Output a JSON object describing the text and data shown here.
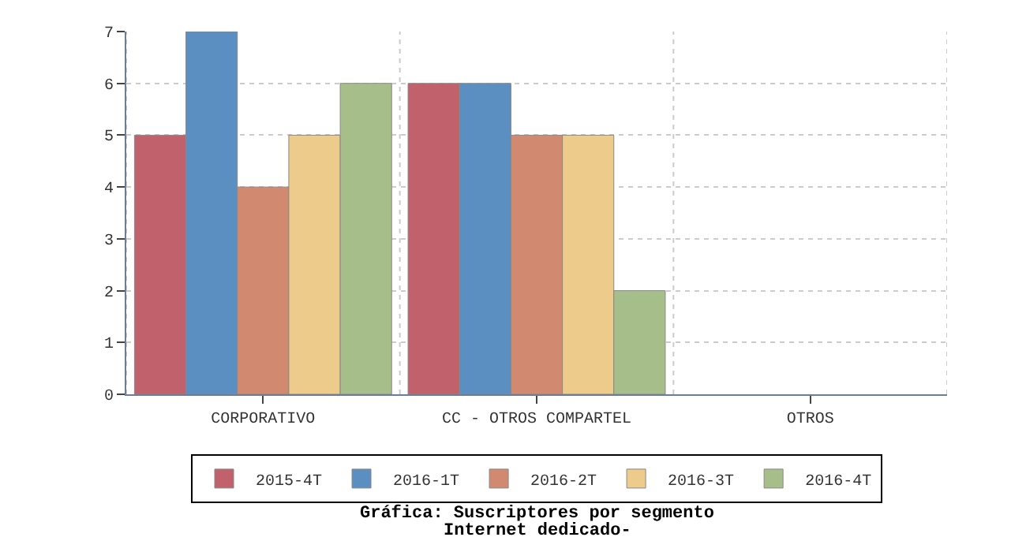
{
  "chart_data": {
    "type": "bar",
    "title": "Gráfica: Suscriptores por segmento",
    "subtitle": "Internet dedicado-",
    "categories": [
      "CORPORATIVO",
      "CC - OTROS COMPARTEL",
      "OTROS"
    ],
    "series": [
      {
        "name": "2015-4T",
        "color": "#c0616b",
        "values": [
          5,
          6,
          null
        ]
      },
      {
        "name": "2016-1T",
        "color": "#5b8fc2",
        "values": [
          7,
          6,
          null
        ]
      },
      {
        "name": "2016-2T",
        "color": "#d18a6f",
        "values": [
          4,
          5,
          null
        ]
      },
      {
        "name": "2016-3T",
        "color": "#eccb8b",
        "values": [
          5,
          5,
          null
        ]
      },
      {
        "name": "2016-4T",
        "color": "#a6bf8a",
        "values": [
          6,
          2,
          null
        ]
      }
    ],
    "ylim": [
      0,
      7
    ],
    "yticks": [
      0,
      1,
      2,
      3,
      4,
      5,
      6,
      7
    ],
    "grid": true,
    "legend": "bottom"
  }
}
